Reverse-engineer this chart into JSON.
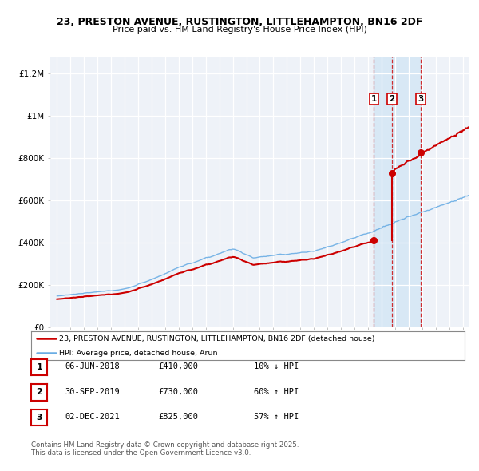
{
  "title_line1": "23, PRESTON AVENUE, RUSTINGTON, LITTLEHAMPTON, BN16 2DF",
  "title_line2": "Price paid vs. HM Land Registry's House Price Index (HPI)",
  "ylabel_ticks": [
    "£0",
    "£200K",
    "£400K",
    "£600K",
    "£800K",
    "£1M",
    "£1.2M"
  ],
  "ytick_values": [
    0,
    200000,
    400000,
    600000,
    800000,
    1000000,
    1200000
  ],
  "ylim": [
    0,
    1280000
  ],
  "xlim_start": 1994.5,
  "xlim_end": 2025.5,
  "hpi_color": "#6aade4",
  "price_color": "#cc0000",
  "shade_color": "#d8e8f5",
  "background_color": "#eef2f8",
  "legend1": "23, PRESTON AVENUE, RUSTINGTON, LITTLEHAMPTON, BN16 2DF (detached house)",
  "legend2": "HPI: Average price, detached house, Arun",
  "t1_year": 2018.44,
  "t2_year": 2019.75,
  "t3_year": 2021.92,
  "t1_price": 410000,
  "t2_price": 730000,
  "t3_price": 825000,
  "transactions": [
    {
      "num": 1,
      "date": "06-JUN-2018",
      "price": "£410,000",
      "pct": "10% ↓ HPI",
      "year": 2018.44,
      "price_val": 410000
    },
    {
      "num": 2,
      "date": "30-SEP-2019",
      "price": "£730,000",
      "pct": "60% ↑ HPI",
      "year": 2019.75,
      "price_val": 730000
    },
    {
      "num": 3,
      "date": "02-DEC-2021",
      "price": "£825,000",
      "pct": "57% ↑ HPI",
      "year": 2021.92,
      "price_val": 825000
    }
  ],
  "footer_line1": "Contains HM Land Registry data © Crown copyright and database right 2025.",
  "footer_line2": "This data is licensed under the Open Government Licence v3.0."
}
